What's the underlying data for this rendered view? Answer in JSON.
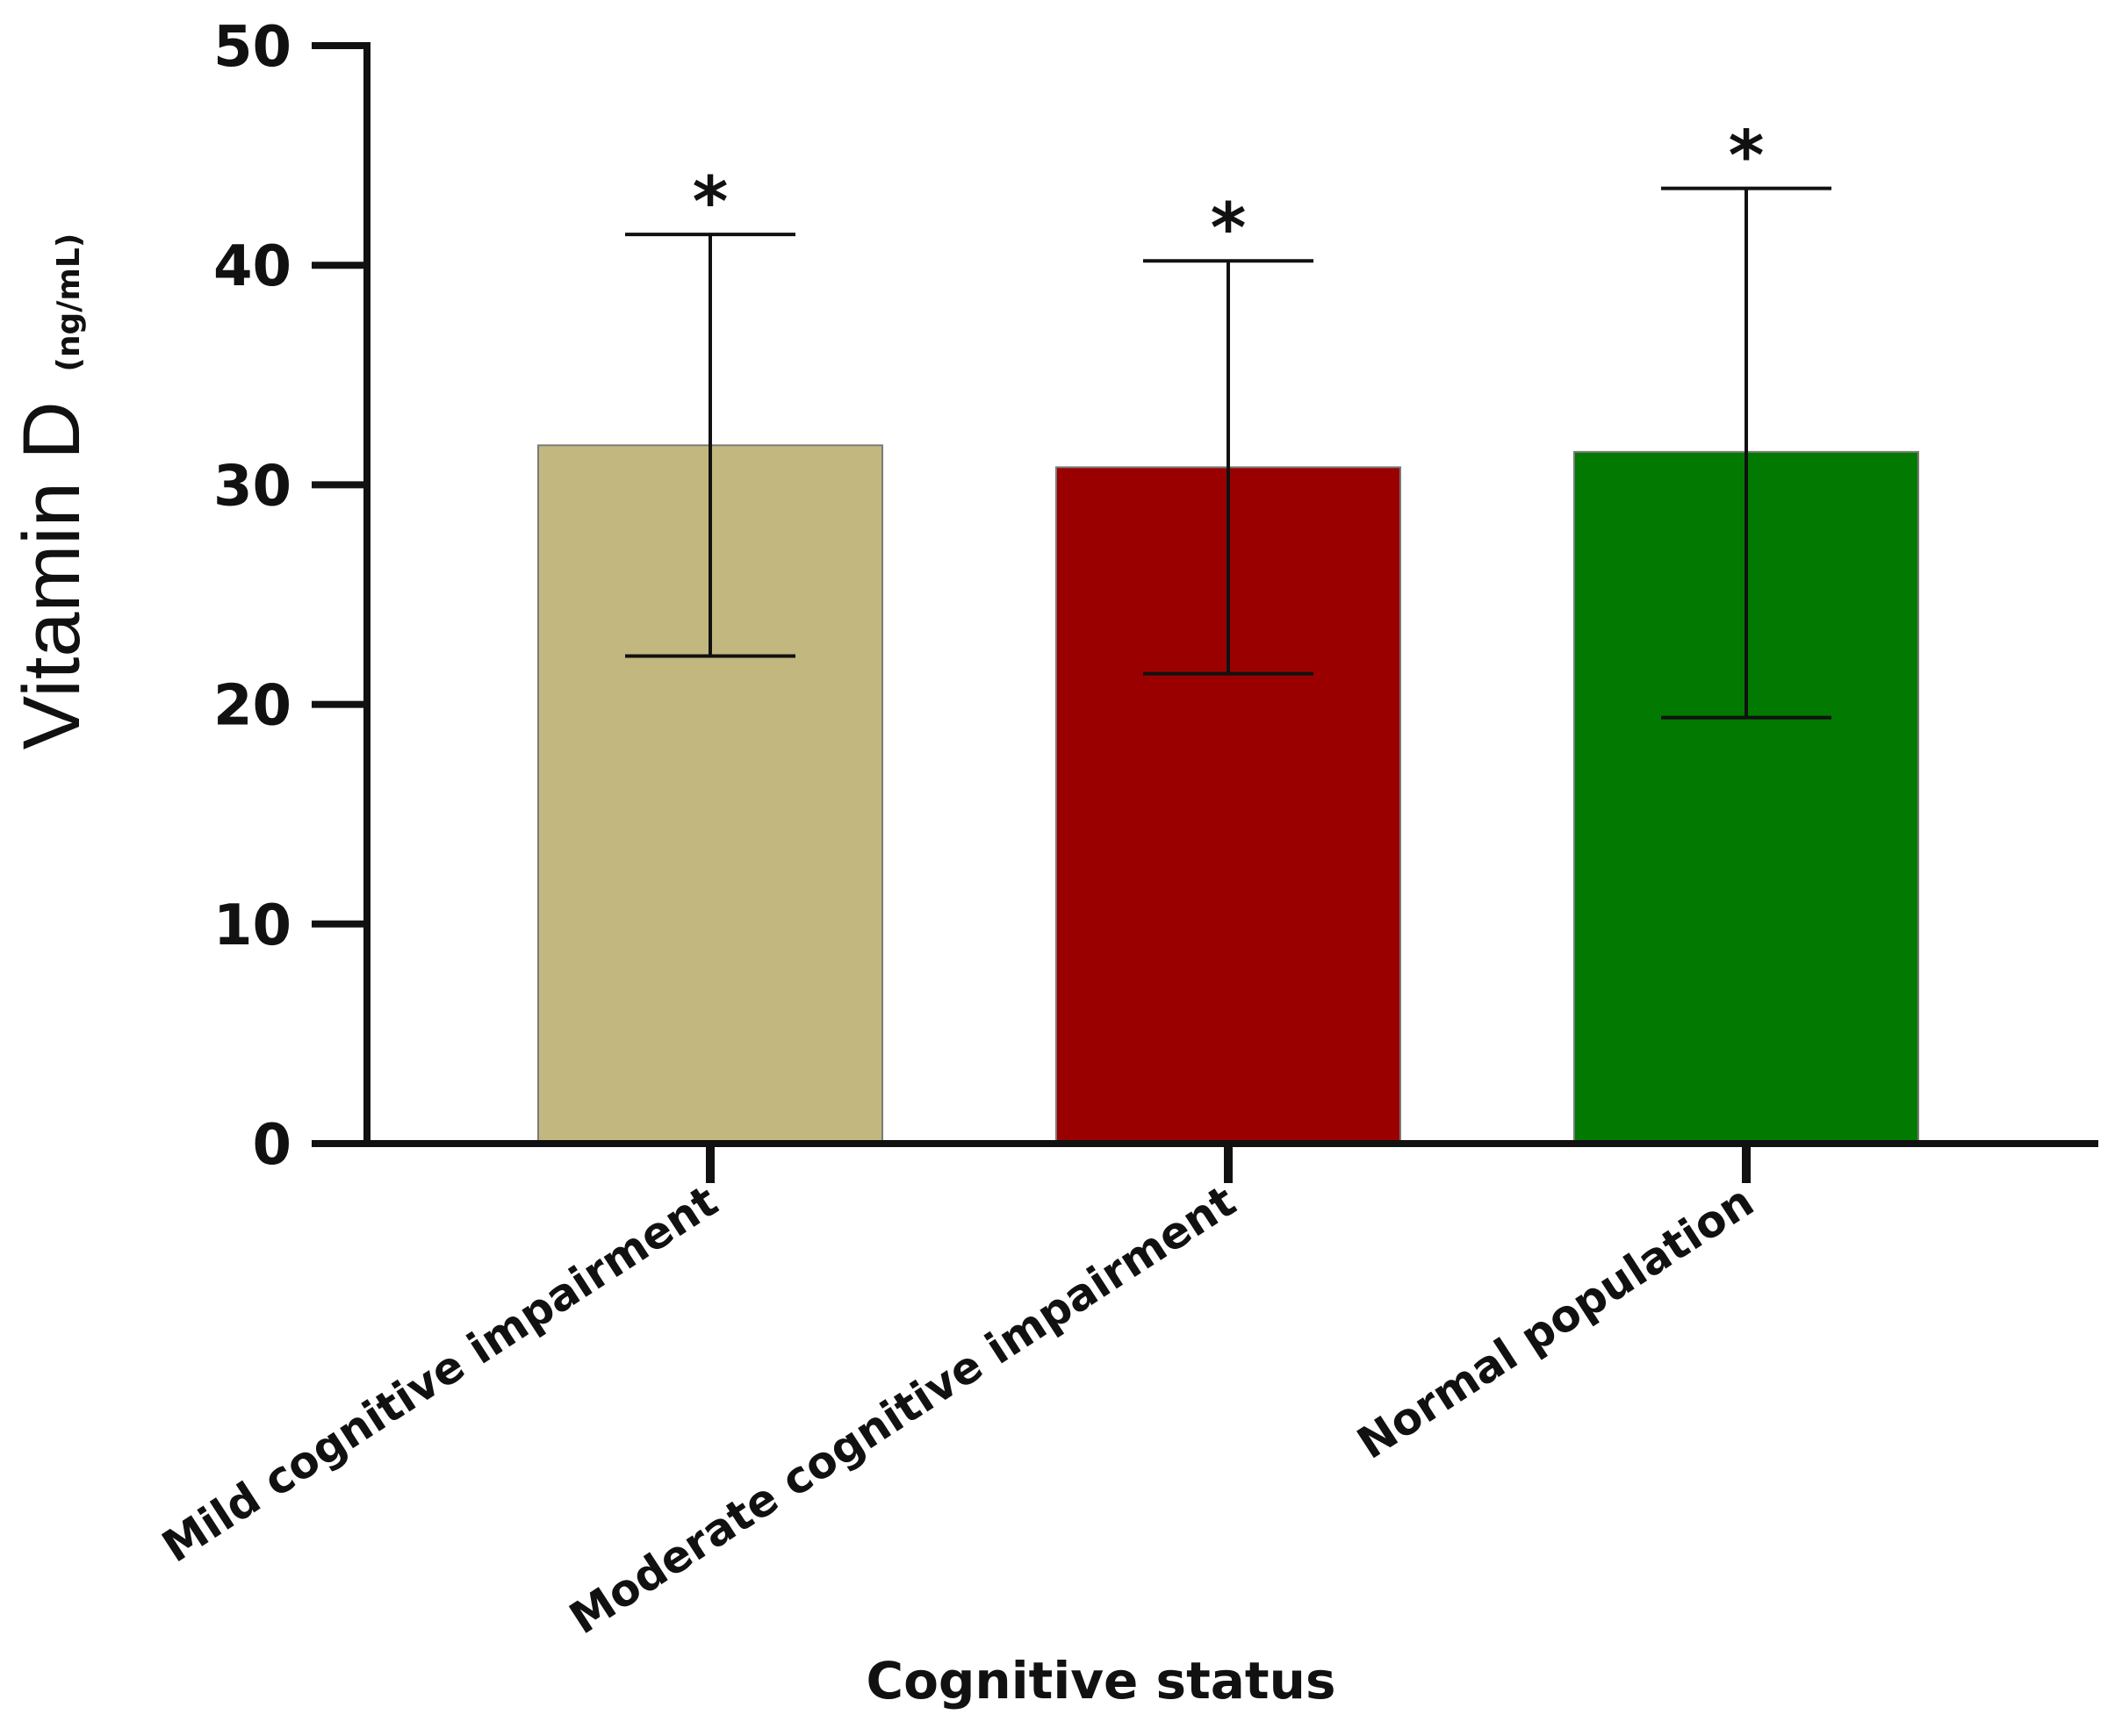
{
  "chart_data": {
    "type": "bar",
    "title": "",
    "xlabel": "Cognitive status",
    "ylabel": "Vitamin D",
    "ylabel_unit": "(ng/mL)",
    "categories": [
      "Mild cognitive impairment",
      "Moderate cognitive impairment",
      "Normal population"
    ],
    "values": [
      31.8,
      30.8,
      31.5
    ],
    "error_low": [
      22.2,
      21.4,
      19.4
    ],
    "error_high": [
      41.4,
      40.2,
      43.5
    ],
    "significance": [
      "*",
      "*",
      "*"
    ],
    "colors": [
      "#c2b77e",
      "#9b0000",
      "#027a02"
    ],
    "ylim": [
      0,
      50
    ],
    "yticks": [
      0,
      10,
      20,
      30,
      40,
      50
    ],
    "ytick_labels": [
      "0",
      "10",
      "20",
      "30",
      "40",
      "50"
    ],
    "grid": false,
    "legend": "none"
  }
}
